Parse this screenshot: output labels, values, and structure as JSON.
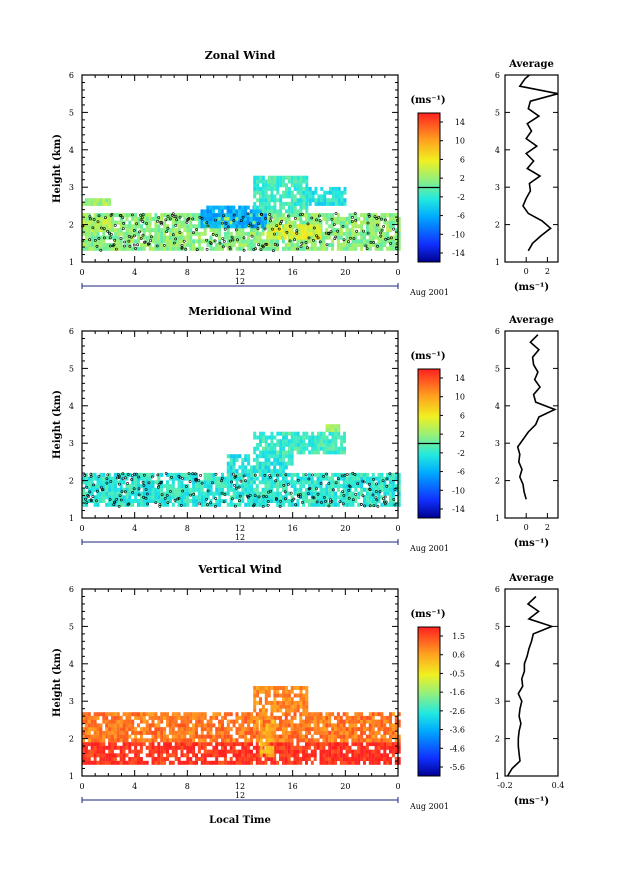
{
  "chart_data": [
    {
      "type": "heatmap",
      "title": "Zonal Wind",
      "xlabel": "",
      "ylabel": "Height (km)",
      "xlim": [
        0,
        24
      ],
      "ylim": [
        1,
        6
      ],
      "xticks": [
        "0",
        "4",
        "8",
        "12",
        "16",
        "20",
        "0"
      ],
      "yticks": [
        "1",
        "2",
        "3",
        "4",
        "5",
        "6"
      ],
      "date_axis": {
        "day": "12",
        "label": "Aug 2001"
      },
      "colorbar": {
        "units": "(ms⁻¹)",
        "ticks": [
          "14",
          "10",
          "6",
          "2",
          "-2",
          "-6",
          "-10",
          "-14"
        ],
        "range": [
          -16,
          16
        ],
        "zero_line": 0
      },
      "regions": [
        {
          "x": [
            0.0,
            24.0
          ],
          "y": [
            1.3,
            2.3
          ],
          "value": 1.5
        },
        {
          "x": [
            0.0,
            2.0
          ],
          "y": [
            1.8,
            2.2
          ],
          "value": 3.5
        },
        {
          "x": [
            9.0,
            14.0
          ],
          "y": [
            1.9,
            2.5
          ],
          "value": -6.0
        },
        {
          "x": [
            13.0,
            17.0
          ],
          "y": [
            2.3,
            3.3
          ],
          "value": -1.5
        },
        {
          "x": [
            14.0,
            18.0
          ],
          "y": [
            1.6,
            2.0
          ],
          "value": 4.5
        },
        {
          "x": [
            17.0,
            20.0
          ],
          "y": [
            2.5,
            3.0
          ],
          "value": -2.5
        },
        {
          "x": [
            0.0,
            2.0
          ],
          "y": [
            2.5,
            2.7
          ],
          "value": 2.5
        }
      ],
      "average_profile": {
        "title": "Average",
        "xlabel": "(ms⁻¹)",
        "xlim": [
          -2,
          3
        ],
        "xticks": [
          "0",
          "2"
        ],
        "yticks": [
          "1",
          "2",
          "3",
          "4",
          "5",
          "6"
        ],
        "height": [
          1.3,
          1.5,
          1.7,
          1.9,
          2.1,
          2.3,
          2.5,
          2.7,
          2.9,
          3.1,
          3.3,
          3.5,
          3.7,
          3.9,
          4.1,
          4.3,
          4.5,
          4.7,
          4.9,
          5.1,
          5.3,
          5.5,
          5.7,
          5.9,
          6.0
        ],
        "values": [
          0.2,
          0.6,
          1.4,
          2.3,
          1.5,
          0.2,
          -0.3,
          0.0,
          0.4,
          0.3,
          1.3,
          0.1,
          0.7,
          0.0,
          1.0,
          0.0,
          0.5,
          0.1,
          1.2,
          0.2,
          0.4,
          3.0,
          -0.6,
          -0.1,
          0.3
        ]
      }
    },
    {
      "type": "heatmap",
      "title": "Meridional Wind",
      "xlabel": "",
      "ylabel": "Height (km)",
      "xlim": [
        0,
        24
      ],
      "ylim": [
        1,
        6
      ],
      "xticks": [
        "0",
        "4",
        "8",
        "12",
        "16",
        "20",
        "0"
      ],
      "yticks": [
        "1",
        "2",
        "3",
        "4",
        "5",
        "6"
      ],
      "date_axis": {
        "day": "12",
        "label": "Aug 2001"
      },
      "colorbar": {
        "units": "(ms⁻¹)",
        "ticks": [
          "14",
          "10",
          "6",
          "2",
          "-2",
          "-6",
          "-10",
          "-14"
        ],
        "range": [
          -16,
          16
        ],
        "zero_line": 0
      },
      "regions": [
        {
          "x": [
            0.0,
            24.0
          ],
          "y": [
            1.3,
            2.2
          ],
          "value": -2.0
        },
        {
          "x": [
            11.0,
            16.0
          ],
          "y": [
            2.2,
            2.7
          ],
          "value": -2.5
        },
        {
          "x": [
            13.0,
            20.0
          ],
          "y": [
            2.7,
            3.3
          ],
          "value": -1.5
        },
        {
          "x": [
            18.5,
            19.5
          ],
          "y": [
            3.3,
            3.5
          ],
          "value": 2.5
        }
      ],
      "average_profile": {
        "title": "Average",
        "xlabel": "(ms⁻¹)",
        "xlim": [
          -2,
          3
        ],
        "xticks": [
          "0",
          "2"
        ],
        "yticks": [
          "1",
          "2",
          "3",
          "4",
          "5",
          "6"
        ],
        "height": [
          1.5,
          1.7,
          1.9,
          2.1,
          2.3,
          2.5,
          2.7,
          2.9,
          3.1,
          3.3,
          3.5,
          3.7,
          3.9,
          4.1,
          4.3,
          4.5,
          4.7,
          4.9,
          5.1,
          5.3,
          5.5,
          5.7,
          5.9
        ],
        "values": [
          0.0,
          -0.2,
          -0.3,
          -0.6,
          -0.4,
          -0.7,
          -0.6,
          -0.8,
          -0.3,
          0.2,
          0.9,
          1.2,
          2.7,
          0.9,
          0.7,
          1.3,
          0.8,
          1.1,
          0.7,
          0.6,
          1.2,
          0.4,
          1.1
        ]
      }
    },
    {
      "type": "heatmap",
      "title": "Vertical Wind",
      "xlabel": "Local Time",
      "ylabel": "Height (km)",
      "xlim": [
        0,
        24
      ],
      "ylim": [
        1,
        6
      ],
      "xticks": [
        "0",
        "4",
        "8",
        "12",
        "16",
        "20",
        "0"
      ],
      "yticks": [
        "1",
        "2",
        "3",
        "4",
        "5",
        "6"
      ],
      "date_axis": {
        "day": "12",
        "label": "Aug 2001"
      },
      "colorbar": {
        "units": "(ms⁻¹)",
        "ticks": [
          "1.5",
          "0.6",
          "-0.5",
          "-1.6",
          "-2.6",
          "-3.6",
          "-4.6",
          "-5.6"
        ],
        "range": [
          -6.0,
          2.0
        ],
        "zero_line": null
      },
      "regions": [
        {
          "x": [
            0.0,
            24.0
          ],
          "y": [
            1.3,
            1.9
          ],
          "value": 1.8
        },
        {
          "x": [
            0.0,
            24.0
          ],
          "y": [
            1.9,
            2.7
          ],
          "value": 1.0
        },
        {
          "x": [
            13.0,
            17.0
          ],
          "y": [
            2.7,
            3.4
          ],
          "value": 0.8
        },
        {
          "x": [
            13.5,
            14.5
          ],
          "y": [
            1.5,
            2.5
          ],
          "value": 0.4
        }
      ],
      "average_profile": {
        "title": "Average",
        "xlabel": "(ms⁻¹)",
        "xlim": [
          -0.2,
          0.4
        ],
        "xticks": [
          "-0.2",
          "0.4"
        ],
        "yticks": [
          "1",
          "2",
          "3",
          "4",
          "5",
          "6"
        ],
        "height": [
          1.0,
          1.2,
          1.4,
          1.6,
          1.8,
          2.0,
          2.2,
          2.4,
          2.6,
          2.8,
          3.0,
          3.2,
          3.4,
          3.6,
          3.8,
          4.0,
          4.2,
          4.4,
          4.6,
          4.8,
          5.0,
          5.2,
          5.4,
          5.6,
          5.8
        ],
        "values": [
          -0.17,
          -0.12,
          -0.03,
          -0.04,
          -0.05,
          -0.05,
          -0.04,
          -0.02,
          -0.04,
          -0.03,
          -0.01,
          -0.05,
          0.0,
          -0.01,
          0.02,
          0.02,
          0.05,
          0.07,
          0.1,
          0.12,
          0.33,
          0.07,
          0.18,
          0.06,
          0.15
        ]
      }
    }
  ]
}
